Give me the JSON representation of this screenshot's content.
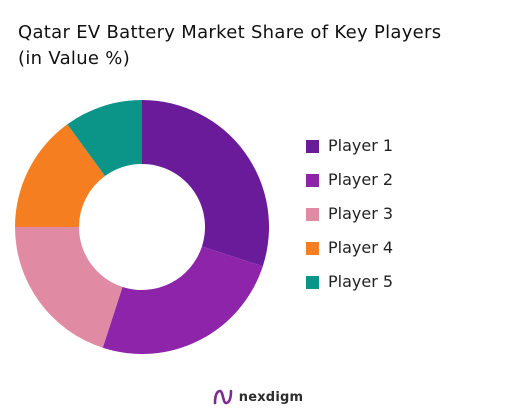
{
  "chart_data": {
    "type": "pie",
    "title_lines": [
      "Qatar EV Battery Market Share of Key Players",
      "(in Value %)"
    ],
    "categories": [
      "Player 1",
      "Player 2",
      "Player 3",
      "Player 4",
      "Player 5"
    ],
    "values": [
      30,
      25,
      20,
      15,
      10
    ],
    "colors": [
      "#6a1b9a",
      "#8e24aa",
      "#e08aa3",
      "#f57f20",
      "#0b9488"
    ],
    "donut": true,
    "legend_position": "right"
  },
  "brand": {
    "name": "nexdigm",
    "icon": "nexdigm-logo-icon",
    "color": "#7b2d8e"
  }
}
